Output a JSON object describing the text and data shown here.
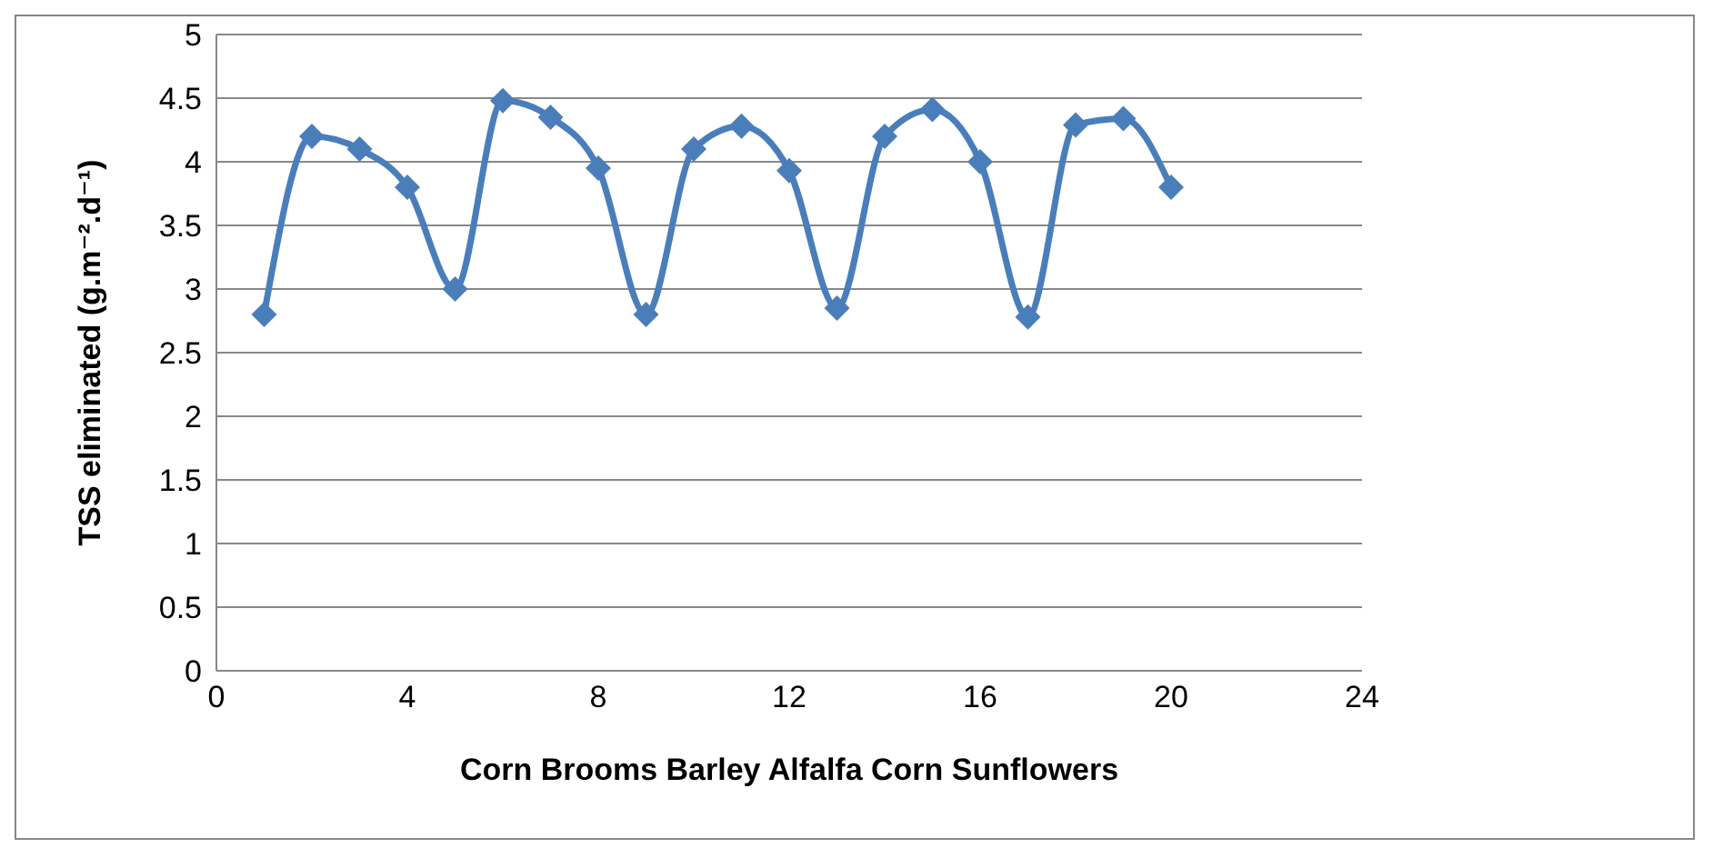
{
  "chart_data": {
    "type": "line",
    "ylabel": "TSS eliminated (g.m⁻².d⁻¹)",
    "xlabel": "Corn Brooms     Barley       Alfalfa      Corn      Sunflowers",
    "x": [
      1,
      2,
      3,
      4,
      5,
      6,
      7,
      8,
      9,
      10,
      11,
      12,
      13,
      14,
      15,
      16,
      17,
      18,
      19,
      20
    ],
    "series": [
      {
        "color": "#4a7ebb",
        "values": [
          2.8,
          4.2,
          4.1,
          3.8,
          3.0,
          4.48,
          4.35,
          3.95,
          2.8,
          4.1,
          4.28,
          3.93,
          2.85,
          4.2,
          4.41,
          4.0,
          2.78,
          4.29,
          4.34,
          3.8
        ]
      }
    ],
    "xlim": [
      0,
      24
    ],
    "xticks": [
      0,
      4,
      8,
      12,
      16,
      20,
      24
    ],
    "ylim": [
      0,
      5
    ],
    "yticks": [
      0,
      0.5,
      1,
      1.5,
      2,
      2.5,
      3,
      3.5,
      4,
      4.5,
      5
    ],
    "grid": "y",
    "marker": "diamond",
    "line_style": "solid"
  }
}
